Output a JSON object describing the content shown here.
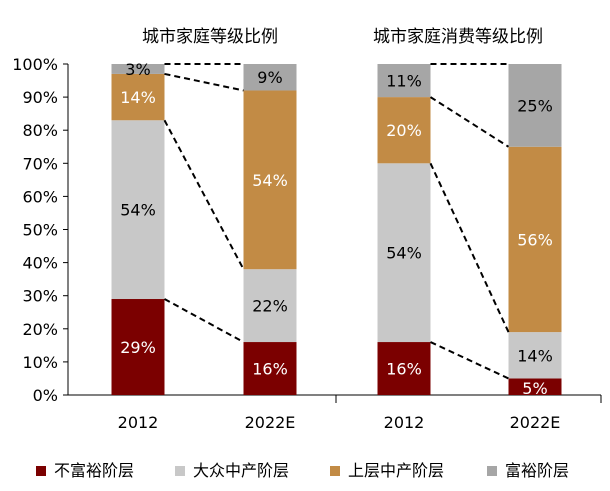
{
  "colors": {
    "不富裕阶层": "#7b0000",
    "大众中产阶层": "#c8c8c8",
    "上层中产阶层": "#c28b45",
    "富裕阶层": "#a6a6a6"
  },
  "chart_data": {
    "type": "bar",
    "stacked": true,
    "percent": true,
    "ylim": [
      0,
      100
    ],
    "yticks": [
      "0%",
      "10%",
      "20%",
      "30%",
      "40%",
      "50%",
      "60%",
      "70%",
      "80%",
      "90%",
      "100%"
    ],
    "legend": [
      "不富裕阶层",
      "大众中产阶层",
      "上层中产阶层",
      "富裕阶层"
    ],
    "legend_position": "bottom",
    "connector_lines": "dashed",
    "panels": [
      {
        "title": "城市家庭等级比例",
        "categories": [
          "2012",
          "2022E"
        ],
        "series": [
          {
            "name": "不富裕阶层",
            "values": [
              29,
              16
            ],
            "labels": [
              "29%",
              "16%"
            ]
          },
          {
            "name": "大众中产阶层",
            "values": [
              54,
              22
            ],
            "labels": [
              "54%",
              "22%"
            ]
          },
          {
            "name": "上层中产阶层",
            "values": [
              14,
              54
            ],
            "labels": [
              "14%",
              "54%"
            ]
          },
          {
            "name": "富裕阶层",
            "values": [
              3,
              9
            ],
            "labels": [
              "3%",
              "9%"
            ]
          }
        ]
      },
      {
        "title": "城市家庭消费等级比例",
        "categories": [
          "2012",
          "2022E"
        ],
        "series": [
          {
            "name": "不富裕阶层",
            "values": [
              16,
              5
            ],
            "labels": [
              "16%",
              "5%"
            ]
          },
          {
            "name": "大众中产阶层",
            "values": [
              54,
              14
            ],
            "labels": [
              "54%",
              "14%"
            ]
          },
          {
            "name": "上层中产阶层",
            "values": [
              20,
              56
            ],
            "labels": [
              "20%",
              "56%"
            ]
          },
          {
            "name": "富裕阶层",
            "values": [
              11,
              25
            ],
            "labels": [
              "11%",
              "25%"
            ]
          }
        ]
      }
    ]
  }
}
